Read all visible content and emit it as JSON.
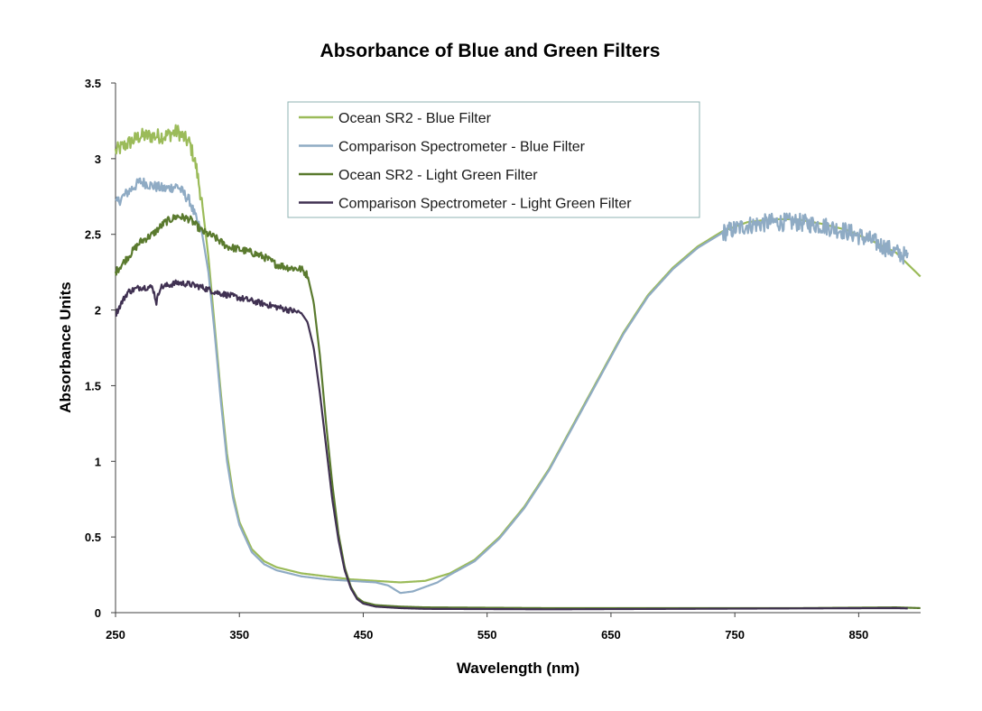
{
  "chart_data": {
    "type": "line",
    "title": "Absorbance of Blue and Green Filters",
    "xlabel": "Wavelength (nm)",
    "ylabel": "Absorbance Units",
    "xlim": [
      250,
      900
    ],
    "ylim": [
      0,
      3.5
    ],
    "xticks": [
      "250",
      "350",
      "450",
      "550",
      "650",
      "750",
      "850"
    ],
    "xtick_values": [
      250,
      350,
      450,
      550,
      650,
      750,
      850
    ],
    "yticks": [
      "0",
      "0.5",
      "1",
      "1.5",
      "2",
      "2.5",
      "3",
      "3.5"
    ],
    "ytick_values": [
      0,
      0.5,
      1,
      1.5,
      2,
      2.5,
      3,
      3.5
    ],
    "grid": false,
    "legend_position": "top-center",
    "series": [
      {
        "name": "Ocean SR2 - Blue Filter",
        "color": "#9bbb59",
        "noise": 0.05,
        "noise_range": [
          250,
          320
        ],
        "points": [
          [
            250,
            3.05
          ],
          [
            260,
            3.1
          ],
          [
            270,
            3.15
          ],
          [
            280,
            3.15
          ],
          [
            290,
            3.15
          ],
          [
            300,
            3.18
          ],
          [
            310,
            3.1
          ],
          [
            315,
            2.95
          ],
          [
            320,
            2.7
          ],
          [
            325,
            2.35
          ],
          [
            330,
            1.9
          ],
          [
            335,
            1.45
          ],
          [
            340,
            1.05
          ],
          [
            345,
            0.78
          ],
          [
            350,
            0.6
          ],
          [
            360,
            0.42
          ],
          [
            370,
            0.34
          ],
          [
            380,
            0.3
          ],
          [
            400,
            0.26
          ],
          [
            420,
            0.24
          ],
          [
            440,
            0.22
          ],
          [
            460,
            0.21
          ],
          [
            480,
            0.2
          ],
          [
            500,
            0.21
          ],
          [
            520,
            0.26
          ],
          [
            540,
            0.35
          ],
          [
            560,
            0.5
          ],
          [
            580,
            0.7
          ],
          [
            600,
            0.95
          ],
          [
            620,
            1.25
          ],
          [
            640,
            1.55
          ],
          [
            660,
            1.85
          ],
          [
            680,
            2.1
          ],
          [
            700,
            2.28
          ],
          [
            720,
            2.42
          ],
          [
            740,
            2.52
          ],
          [
            760,
            2.58
          ],
          [
            780,
            2.6
          ],
          [
            800,
            2.6
          ],
          [
            820,
            2.57
          ],
          [
            840,
            2.53
          ],
          [
            860,
            2.46
          ],
          [
            880,
            2.38
          ],
          [
            900,
            2.22
          ]
        ]
      },
      {
        "name": "Comparison Spectrometer - Blue Filter",
        "color": "#8fabc4",
        "noise": 0.035,
        "noise_range": [
          250,
          320
        ],
        "noise2": 0.06,
        "noise2_range": [
          740,
          890
        ],
        "points": [
          [
            250,
            2.7
          ],
          [
            260,
            2.78
          ],
          [
            270,
            2.85
          ],
          [
            280,
            2.82
          ],
          [
            290,
            2.8
          ],
          [
            300,
            2.82
          ],
          [
            310,
            2.72
          ],
          [
            315,
            2.6
          ],
          [
            320,
            2.5
          ],
          [
            325,
            2.25
          ],
          [
            330,
            1.85
          ],
          [
            335,
            1.4
          ],
          [
            340,
            1.0
          ],
          [
            345,
            0.75
          ],
          [
            350,
            0.58
          ],
          [
            360,
            0.4
          ],
          [
            370,
            0.32
          ],
          [
            380,
            0.28
          ],
          [
            400,
            0.24
          ],
          [
            420,
            0.22
          ],
          [
            440,
            0.21
          ],
          [
            460,
            0.2
          ],
          [
            470,
            0.18
          ],
          [
            480,
            0.13
          ],
          [
            490,
            0.14
          ],
          [
            500,
            0.17
          ],
          [
            510,
            0.2
          ],
          [
            520,
            0.25
          ],
          [
            540,
            0.34
          ],
          [
            560,
            0.49
          ],
          [
            580,
            0.69
          ],
          [
            600,
            0.94
          ],
          [
            620,
            1.24
          ],
          [
            640,
            1.54
          ],
          [
            660,
            1.84
          ],
          [
            680,
            2.09
          ],
          [
            700,
            2.27
          ],
          [
            720,
            2.41
          ],
          [
            740,
            2.51
          ],
          [
            760,
            2.56
          ],
          [
            780,
            2.58
          ],
          [
            800,
            2.58
          ],
          [
            820,
            2.56
          ],
          [
            840,
            2.52
          ],
          [
            860,
            2.46
          ],
          [
            880,
            2.38
          ],
          [
            890,
            2.35
          ]
        ]
      },
      {
        "name": "Ocean SR2 - Light Green Filter",
        "color": "#5a7a2e",
        "noise": 0.025,
        "noise_range": [
          250,
          405
        ],
        "points": [
          [
            250,
            2.25
          ],
          [
            260,
            2.35
          ],
          [
            270,
            2.45
          ],
          [
            280,
            2.5
          ],
          [
            290,
            2.58
          ],
          [
            300,
            2.62
          ],
          [
            310,
            2.6
          ],
          [
            320,
            2.52
          ],
          [
            330,
            2.48
          ],
          [
            340,
            2.42
          ],
          [
            350,
            2.4
          ],
          [
            360,
            2.38
          ],
          [
            370,
            2.35
          ],
          [
            380,
            2.3
          ],
          [
            390,
            2.28
          ],
          [
            400,
            2.27
          ],
          [
            405,
            2.23
          ],
          [
            410,
            2.05
          ],
          [
            415,
            1.7
          ],
          [
            420,
            1.25
          ],
          [
            425,
            0.85
          ],
          [
            430,
            0.52
          ],
          [
            435,
            0.3
          ],
          [
            440,
            0.17
          ],
          [
            445,
            0.1
          ],
          [
            450,
            0.07
          ],
          [
            460,
            0.05
          ],
          [
            480,
            0.04
          ],
          [
            500,
            0.035
          ],
          [
            600,
            0.03
          ],
          [
            700,
            0.03
          ],
          [
            800,
            0.03
          ],
          [
            880,
            0.035
          ],
          [
            900,
            0.03
          ]
        ]
      },
      {
        "name": "Comparison Spectrometer - Light Green Filter",
        "color": "#403152",
        "noise": 0.02,
        "noise_range": [
          250,
          400
        ],
        "points": [
          [
            250,
            1.97
          ],
          [
            255,
            2.05
          ],
          [
            260,
            2.12
          ],
          [
            270,
            2.15
          ],
          [
            280,
            2.15
          ],
          [
            283,
            2.05
          ],
          [
            286,
            2.15
          ],
          [
            300,
            2.18
          ],
          [
            310,
            2.17
          ],
          [
            320,
            2.15
          ],
          [
            330,
            2.12
          ],
          [
            340,
            2.1
          ],
          [
            350,
            2.08
          ],
          [
            360,
            2.06
          ],
          [
            370,
            2.04
          ],
          [
            380,
            2.02
          ],
          [
            390,
            2.0
          ],
          [
            400,
            1.98
          ],
          [
            405,
            1.92
          ],
          [
            410,
            1.75
          ],
          [
            415,
            1.45
          ],
          [
            420,
            1.1
          ],
          [
            425,
            0.75
          ],
          [
            430,
            0.48
          ],
          [
            435,
            0.28
          ],
          [
            440,
            0.16
          ],
          [
            445,
            0.09
          ],
          [
            450,
            0.06
          ],
          [
            460,
            0.04
          ],
          [
            480,
            0.03
          ],
          [
            500,
            0.025
          ],
          [
            600,
            0.022
          ],
          [
            700,
            0.025
          ],
          [
            800,
            0.028
          ],
          [
            880,
            0.03
          ],
          [
            890,
            0.028
          ]
        ]
      }
    ]
  }
}
